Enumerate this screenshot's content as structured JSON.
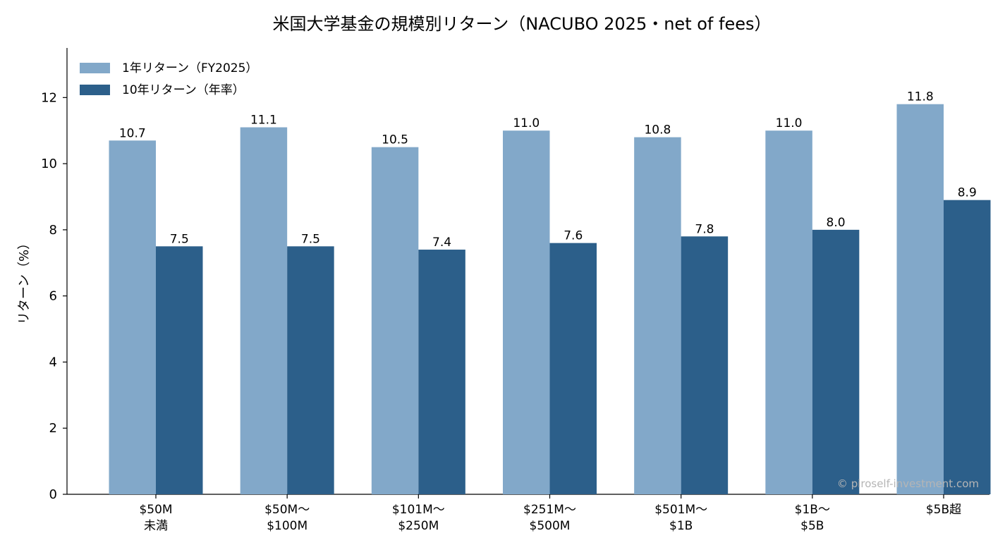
{
  "chart_data": {
    "type": "bar",
    "title": "米国大学基金の規模別リターン（NACUBO 2025・net of fees）",
    "ylabel": "リターン（%）",
    "xlabel": "",
    "ylim": [
      0,
      13.5
    ],
    "yticks": [
      0,
      2,
      4,
      6,
      8,
      10,
      12
    ],
    "categories": [
      [
        "$50M",
        "未満"
      ],
      [
        "$50M〜",
        "$100M"
      ],
      [
        "$101M〜",
        "$250M"
      ],
      [
        "$251M〜",
        "$500M"
      ],
      [
        "$501M〜",
        "$1B"
      ],
      [
        "$1B〜",
        "$5B"
      ],
      [
        "$5B超"
      ]
    ],
    "series": [
      {
        "name": "1年リターン（FY2025）",
        "color": "#82a8c9",
        "values": [
          10.7,
          11.1,
          10.5,
          11.0,
          10.8,
          11.0,
          11.8
        ],
        "labels": [
          "10.7",
          "11.1",
          "10.5",
          "11.0",
          "10.8",
          "11.0",
          "11.8"
        ]
      },
      {
        "name": "10年リターン（年率）",
        "color": "#2c5f8a",
        "values": [
          7.5,
          7.5,
          7.4,
          7.6,
          7.8,
          8.0,
          8.9
        ],
        "labels": [
          "7.5",
          "7.5",
          "7.4",
          "7.6",
          "7.8",
          "8.0",
          "8.9"
        ]
      }
    ],
    "legend_position": "top-left",
    "grid": false
  },
  "watermark": "© piroself-investment.com"
}
